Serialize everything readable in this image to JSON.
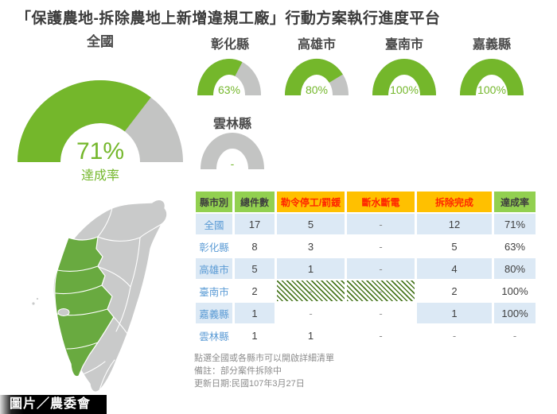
{
  "title": "「保護農地-拆除農地上新增違規工廠」行動方案執行進度平台",
  "chart_data": {
    "type": "gauge",
    "unit": "%",
    "gauges": [
      {
        "label": "全國",
        "value": 71,
        "display": "71%",
        "sublabel": "達成率",
        "size": "large"
      },
      {
        "label": "彰化縣",
        "value": 63,
        "display": "63%",
        "size": "small"
      },
      {
        "label": "高雄市",
        "value": 80,
        "display": "80%",
        "size": "small"
      },
      {
        "label": "臺南市",
        "value": 100,
        "display": "100%",
        "size": "small"
      },
      {
        "label": "嘉義縣",
        "value": 100,
        "display": "100%",
        "size": "small"
      },
      {
        "label": "雲林縣",
        "value": 0,
        "display": "-",
        "size": "small"
      }
    ],
    "colors": {
      "filled": "#74b72b",
      "empty": "#c3c4c3"
    }
  },
  "map": {
    "region": "臺灣",
    "highlighted_counties": [
      "彰化縣",
      "雲林縣",
      "嘉義縣",
      "臺南市",
      "高雄市"
    ],
    "highlight_color": "#69aa40",
    "base_color": "#c9caca"
  },
  "table": {
    "columns": [
      {
        "label": "縣市別",
        "style": "green"
      },
      {
        "label": "總件數",
        "style": "green"
      },
      {
        "label": "勒令停工/罰鍰",
        "style": "orange"
      },
      {
        "label": "斷水斷電",
        "style": "orange"
      },
      {
        "label": "拆除完成",
        "style": "orange"
      },
      {
        "label": "達成率",
        "style": "green"
      }
    ],
    "rows": [
      {
        "county": "全國",
        "values": [
          "17",
          "5",
          "-",
          "12",
          "71%"
        ],
        "hatched": []
      },
      {
        "county": "彰化縣",
        "values": [
          "8",
          "3",
          "-",
          "5",
          "63%"
        ],
        "hatched": []
      },
      {
        "county": "高雄市",
        "values": [
          "5",
          "1",
          "-",
          "4",
          "80%"
        ],
        "hatched": []
      },
      {
        "county": "臺南市",
        "values": [
          "2",
          "-",
          "-",
          "2",
          "100%"
        ],
        "hatched": [
          1,
          2
        ]
      },
      {
        "county": "嘉義縣",
        "values": [
          "1",
          "-",
          "-",
          "1",
          "100%"
        ],
        "hatched": [
          1,
          2
        ]
      },
      {
        "county": "雲林縣",
        "values": [
          "1",
          "1",
          "-",
          "-",
          "-"
        ],
        "hatched": []
      }
    ],
    "colors": {
      "header_green_bg": "#92d050",
      "header_orange_bg": "#ffc000",
      "header_orange_text": "#ff2600",
      "alt_row_bg": "#dce9f5",
      "county_text": "#5b9bd5",
      "hatch_stripe": "#47761d"
    }
  },
  "notes": [
    "點選全國或各縣市可以開啟詳細清單",
    "備註：部分案件拆除中",
    "更新日期:民國107年3月27日"
  ],
  "credit": "圖片／農委會"
}
